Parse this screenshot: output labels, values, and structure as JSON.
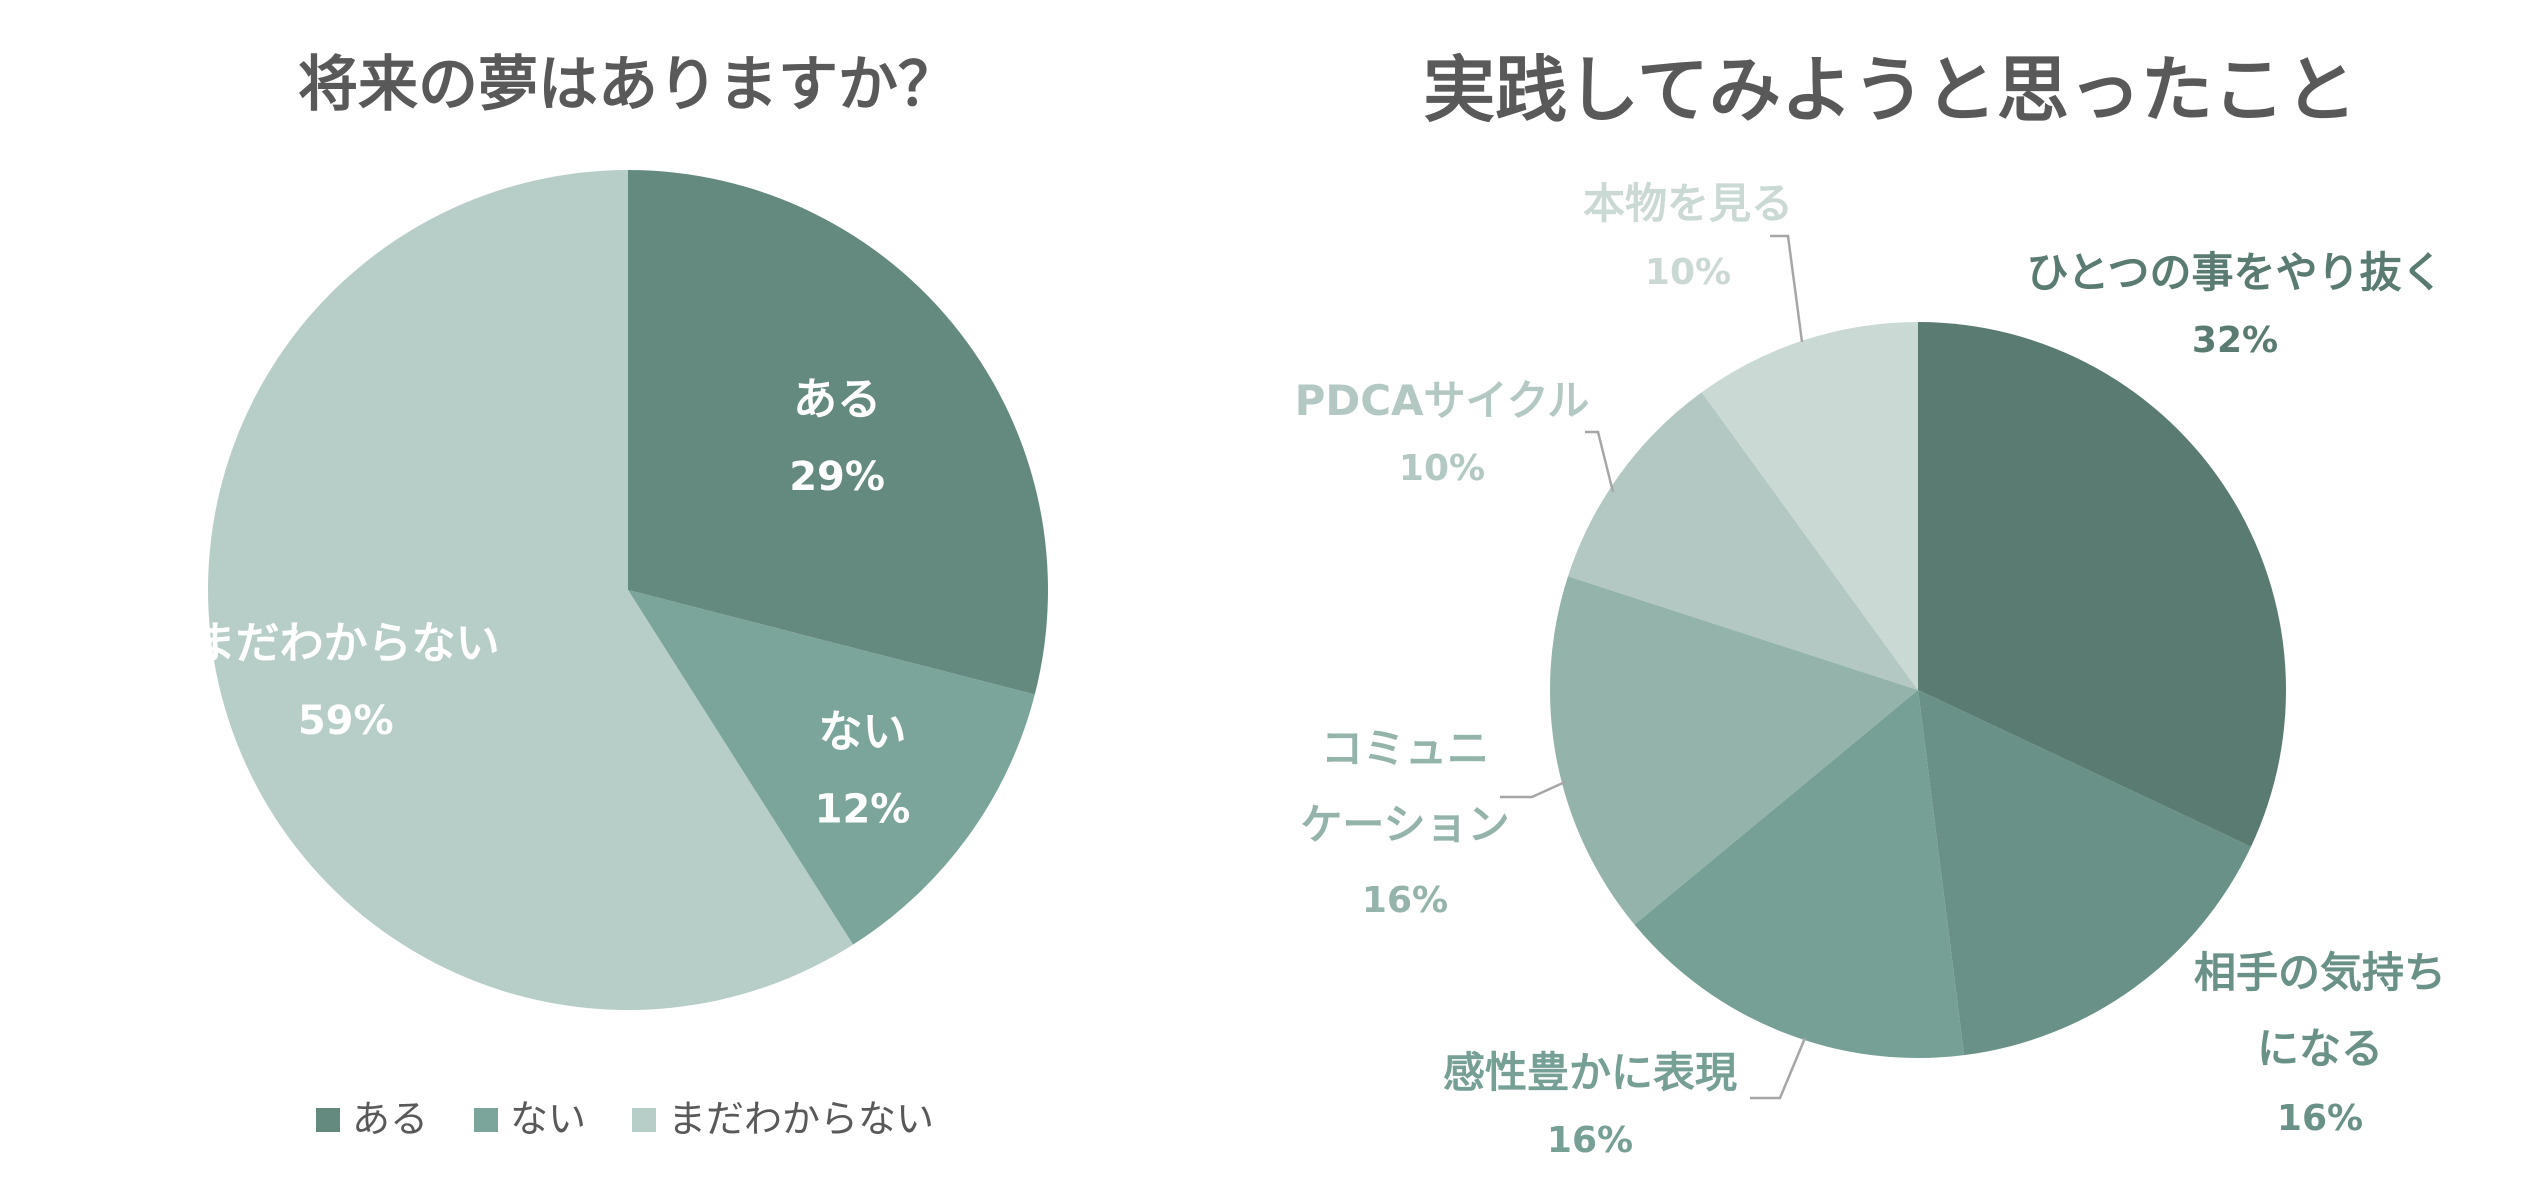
{
  "chart_data": [
    {
      "type": "pie",
      "title": "将来の夢はありますか？",
      "slices": [
        {
          "label": "ある",
          "value": 29,
          "value_label": "29%",
          "color": "#64897F"
        },
        {
          "label": "ない",
          "value": 12,
          "value_label": "12%",
          "color": "#7BA59A"
        },
        {
          "label": "まだわからない",
          "value": 59,
          "value_label": "59%",
          "color": "#B7CDC7"
        }
      ],
      "label_color": "#ffffff",
      "legend": {
        "position": "bottom",
        "items": [
          "ある",
          "ない",
          "まだわからない"
        ]
      }
    },
    {
      "type": "pie",
      "title": "実践してみようと思ったこと",
      "slices": [
        {
          "label_lines": [
            "ひとつの事をやり抜く"
          ],
          "value": 32,
          "value_label": "32%",
          "color": "#5A7B72",
          "label_color": "#5A7B72"
        },
        {
          "label_lines": [
            "相手の気持ち",
            "になる"
          ],
          "value": 16,
          "value_label": "16%",
          "color": "#6A9187",
          "label_color": "#6A9187"
        },
        {
          "label_lines": [
            "感性豊かに表現"
          ],
          "value": 16,
          "value_label": "16%",
          "color": "#769F95",
          "label_color": "#769F95"
        },
        {
          "label_lines": [
            "コミュニ",
            "ケーション"
          ],
          "value": 16,
          "value_label": "16%",
          "color": "#93B3AB",
          "label_color": "#93B3AB"
        },
        {
          "label_lines": [
            "PDCAサイクル"
          ],
          "value": 10,
          "value_label": "10%",
          "color": "#B3C8C3",
          "label_color": "#B3C8C3"
        },
        {
          "label_lines": [
            "本物を見る"
          ],
          "value": 10,
          "value_label": "10%",
          "color": "#CBD9D5",
          "label_color": "#CBD9D5"
        }
      ]
    }
  ]
}
